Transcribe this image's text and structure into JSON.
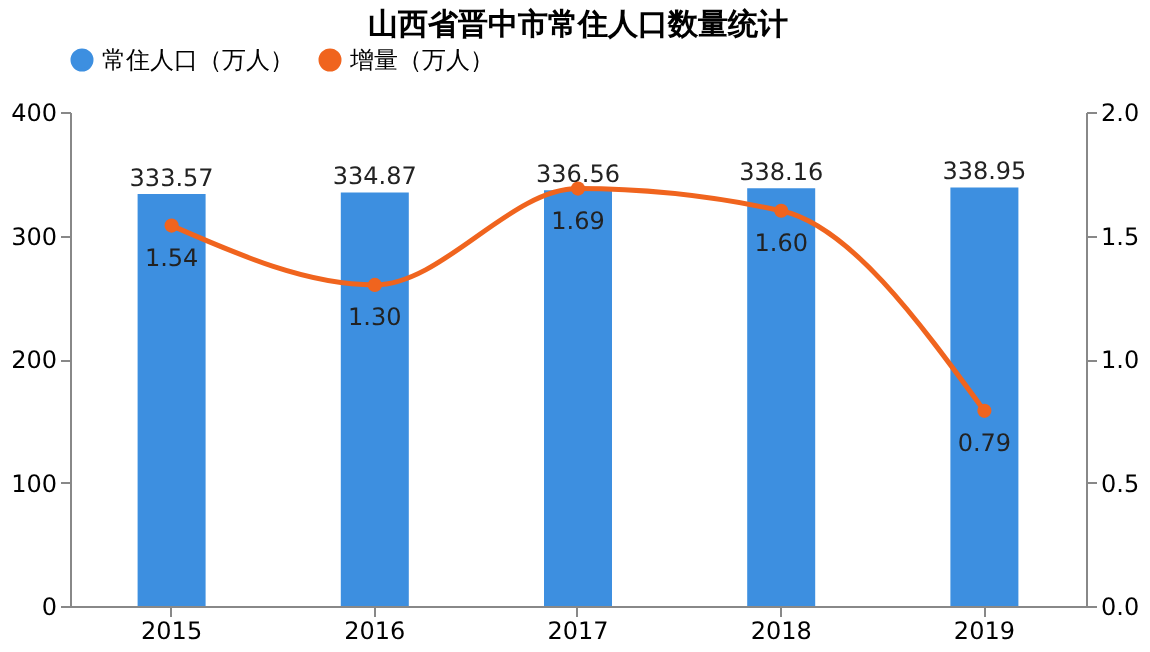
{
  "chart_data": {
    "type": "bar",
    "title": "山西省晋中市常住人口数量统计",
    "categories": [
      "2015",
      "2016",
      "2017",
      "2018",
      "2019"
    ],
    "series": [
      {
        "name": "常住人口（万人）",
        "color": "#3d8fe0",
        "values": [
          333.57,
          334.87,
          336.56,
          338.16,
          338.95
        ]
      },
      {
        "name": "增量（万人）",
        "type": "line",
        "axis": "y2",
        "color": "#f0641e",
        "values": [
          1.54,
          1.3,
          1.69,
          1.6,
          0.79
        ],
        "value_labels": [
          "1.54",
          "1.30",
          "1.69",
          "1.60",
          "0.79"
        ]
      }
    ],
    "ylim": [
      0,
      400
    ],
    "yticks": [
      0,
      100,
      200,
      300,
      400
    ],
    "y2lim": [
      0,
      2
    ],
    "y2ticks": [
      {
        "value": 0,
        "label": "0.0"
      },
      {
        "value": 0.5,
        "label": "0.5"
      },
      {
        "value": 1,
        "label": "1.0"
      },
      {
        "value": 1.5,
        "label": "1.5"
      },
      {
        "value": 2,
        "label": "2.0"
      }
    ],
    "data_labels": true,
    "legend": "top",
    "grid": false,
    "marker": "circle",
    "line_style": "solid"
  }
}
